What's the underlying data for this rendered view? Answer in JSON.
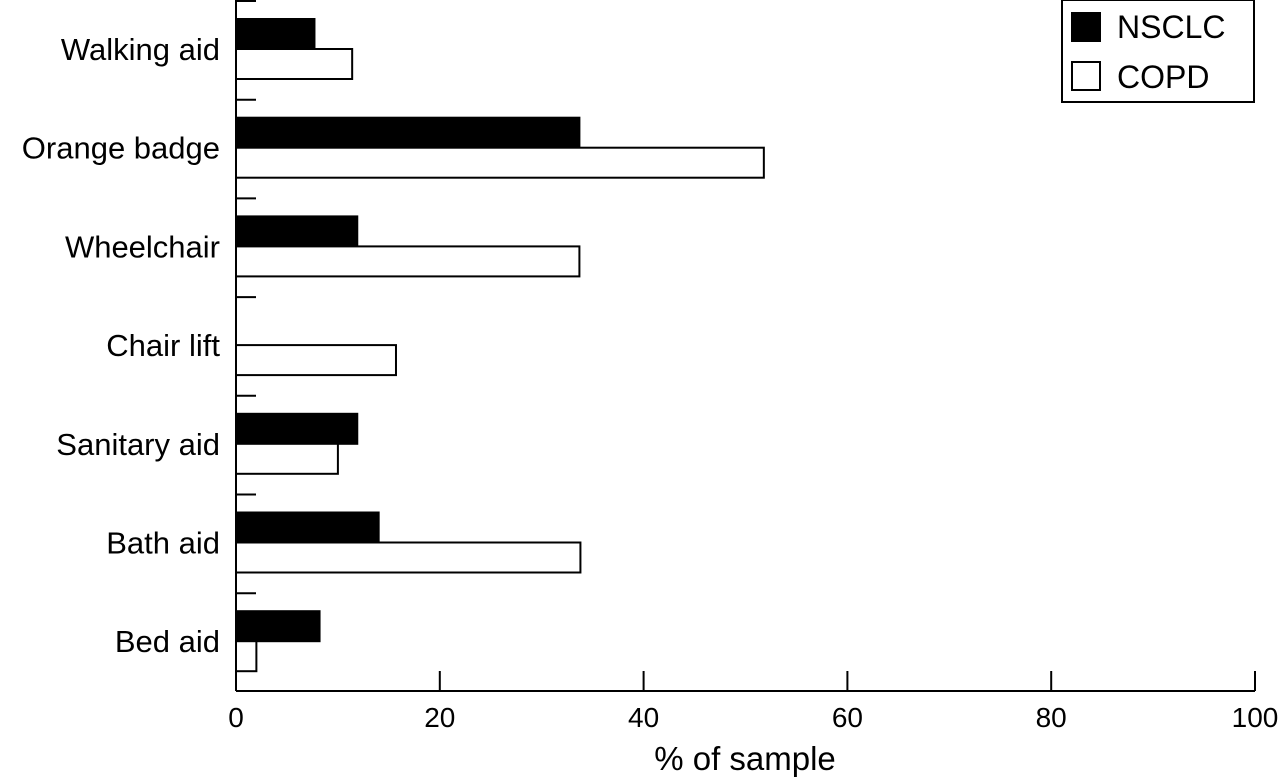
{
  "chart_data": {
    "type": "bar",
    "orientation": "horizontal",
    "categories": [
      "Walking aid",
      "Orange badge",
      "Wheelchair",
      "Chair lift",
      "Sanitary aid",
      "Bath aid",
      "Bed aid"
    ],
    "series": [
      {
        "name": "NSCLC",
        "values": [
          7.7,
          33.7,
          11.9,
          0,
          11.9,
          14.0,
          8.2
        ],
        "color": "#000000"
      },
      {
        "name": "COPD",
        "values": [
          11.4,
          51.8,
          33.7,
          15.7,
          10.0,
          33.8,
          2.0
        ],
        "color": "#ffffff"
      }
    ],
    "title": "",
    "xlabel": "% of sample",
    "ylabel": "",
    "xlim": [
      0,
      100
    ],
    "xticks": [
      0,
      20,
      40,
      60,
      80,
      100
    ],
    "xtick_labels": [
      "0",
      "20",
      "40",
      "60",
      "80",
      "100"
    ],
    "legend": "top-right",
    "grid": false
  }
}
